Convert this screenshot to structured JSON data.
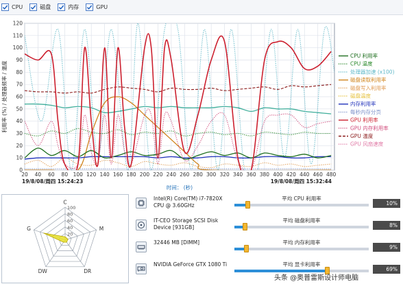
{
  "checkboxes": [
    {
      "label": "CPU",
      "checked": true
    },
    {
      "label": "磁盘",
      "checked": true
    },
    {
      "label": "内存",
      "checked": true
    },
    {
      "label": "GPU",
      "checked": true
    }
  ],
  "chart_data": {
    "type": "line",
    "ylabel": "利用率 (%) / 处理器频率 / 温度",
    "xlabel": "时间： (秒)",
    "x_ticks": [
      20,
      40,
      60,
      80,
      100,
      120,
      140,
      160,
      180,
      200,
      220,
      240,
      260,
      280,
      300,
      320,
      340,
      360,
      380,
      400,
      420,
      440,
      460,
      480
    ],
    "xlim": [
      20,
      485
    ],
    "ylim": [
      0,
      120
    ],
    "y_ticks": [
      0,
      10,
      20,
      30,
      40,
      50,
      60,
      70,
      80,
      90,
      100,
      110,
      120
    ],
    "grid": true,
    "start_time": "19/8/08/周四 15:24:23",
    "end_time": "19/8/08/周四 15:32:44",
    "legend_position": "right",
    "series": [
      {
        "name": "CPU 利用率",
        "color": "#1f6f1f",
        "dash": "solid",
        "x": [
          20,
          40,
          60,
          80,
          100,
          120,
          140,
          160,
          180,
          200,
          220,
          240,
          260,
          280,
          300,
          320,
          340,
          360,
          380,
          400,
          420,
          440,
          460,
          480
        ],
        "values": [
          10,
          18,
          12,
          16,
          11,
          16,
          10,
          12,
          15,
          12,
          13,
          16,
          9,
          12,
          15,
          12,
          14,
          10,
          14,
          12,
          11,
          13,
          10,
          12
        ]
      },
      {
        "name": "CPU 温度",
        "color": "#2e8b2e",
        "dash": "dotted",
        "x": [
          20,
          40,
          60,
          80,
          100,
          120,
          140,
          160,
          180,
          200,
          220,
          240,
          260,
          280,
          300,
          320,
          340,
          360,
          380,
          400,
          420,
          440,
          460,
          480
        ],
        "values": [
          30,
          28,
          32,
          30,
          34,
          31,
          30,
          33,
          29,
          31,
          30,
          32,
          28,
          30,
          31,
          29,
          30,
          28,
          31,
          30,
          29,
          31,
          30,
          30
        ]
      },
      {
        "name": "处理器加速 (x100)",
        "color": "#5fb8c8",
        "dash": "dotted",
        "x": [
          20,
          45,
          70,
          90,
          110,
          130,
          150,
          175,
          190,
          210,
          230,
          250,
          270,
          290,
          310,
          330,
          350,
          370,
          390,
          410,
          430,
          450,
          470,
          485
        ],
        "values": [
          110,
          40,
          115,
          0,
          115,
          10,
          115,
          0,
          120,
          0,
          115,
          115,
          0,
          115,
          0,
          115,
          0,
          0,
          115,
          10,
          115,
          5,
          115,
          80
        ]
      },
      {
        "name": "磁盘读取利用率",
        "color": "#d0841c",
        "dash": "solid",
        "x": [
          20,
          60,
          100,
          120,
          140,
          160,
          180,
          200,
          220,
          240,
          260,
          280,
          300,
          480
        ],
        "values": [
          0,
          0,
          0,
          30,
          55,
          60,
          55,
          45,
          35,
          25,
          15,
          5,
          0,
          0
        ]
      },
      {
        "name": "磁盘写入利用率",
        "color": "#e09a50",
        "dash": "dotted",
        "x": [
          20,
          40,
          60,
          80,
          100,
          120,
          140,
          160,
          180,
          200,
          220,
          240,
          260,
          280,
          300,
          320,
          340,
          360,
          380,
          400,
          420,
          440,
          460,
          480
        ],
        "values": [
          5,
          8,
          3,
          10,
          5,
          4,
          8,
          6,
          3,
          7,
          5,
          4,
          6,
          3,
          2,
          5,
          4,
          3,
          6,
          4,
          5,
          3,
          4,
          5
        ]
      },
      {
        "name": "磁盘温度",
        "color": "#e6c240",
        "dash": "dotted",
        "x": [
          20,
          480
        ],
        "values": [
          0,
          0
        ]
      },
      {
        "name": "内存利用率",
        "color": "#2233bb",
        "dash": "solid",
        "x": [
          20,
          40,
          60,
          80,
          100,
          120,
          140,
          160,
          180,
          200,
          220,
          240,
          260,
          280,
          300,
          320,
          340,
          360,
          380,
          400,
          420,
          440,
          460,
          480
        ],
        "values": [
          9,
          10,
          10,
          10,
          10,
          11,
          11,
          11,
          11,
          11,
          10,
          11,
          10,
          10,
          11,
          11,
          10,
          10,
          11,
          11,
          10,
          10,
          11,
          11
        ]
      },
      {
        "name": "每秒内存分页",
        "color": "#7a8fc8",
        "dash": "dotted",
        "x": [
          20,
          480
        ],
        "values": [
          1,
          1
        ]
      },
      {
        "name": "GPU 利用率",
        "color": "#cc1f2e",
        "dash": "solid",
        "x": [
          20,
          40,
          60,
          70,
          80,
          100,
          110,
          120,
          130,
          140,
          150,
          160,
          170,
          180,
          200,
          210,
          220,
          230,
          240,
          260,
          280,
          300,
          320,
          340,
          360,
          380,
          400,
          420,
          440,
          460,
          480
        ],
        "values": [
          95,
          90,
          95,
          40,
          5,
          5,
          100,
          40,
          5,
          100,
          10,
          100,
          35,
          5,
          100,
          100,
          10,
          100,
          90,
          15,
          45,
          90,
          105,
          10,
          0,
          90,
          105,
          100,
          83,
          85,
          97
        ]
      },
      {
        "name": "GPU 内存利用率",
        "color": "#d04a7a",
        "dash": "dotted",
        "x": [
          20,
          40,
          60,
          70,
          80,
          100,
          110,
          120,
          130,
          140,
          150,
          160,
          170,
          180,
          200,
          210,
          220,
          230,
          240,
          260,
          280,
          300,
          320,
          340,
          360,
          380,
          400,
          420,
          440,
          460,
          480
        ],
        "values": [
          40,
          20,
          40,
          20,
          5,
          5,
          45,
          15,
          5,
          45,
          5,
          45,
          15,
          5,
          45,
          45,
          5,
          45,
          40,
          8,
          20,
          40,
          45,
          8,
          0,
          40,
          45,
          45,
          35,
          38,
          40
        ]
      },
      {
        "name": "GPU 温度",
        "color": "#8b1a1a",
        "dash": "dashed",
        "x": [
          20,
          40,
          60,
          80,
          100,
          120,
          140,
          160,
          180,
          200,
          220,
          240,
          260,
          280,
          300,
          320,
          340,
          360,
          380,
          400,
          420,
          440,
          460,
          480
        ],
        "values": [
          65,
          64,
          64,
          63,
          64,
          63,
          66,
          68,
          67,
          66,
          64,
          67,
          66,
          66,
          67,
          65,
          66,
          67,
          68,
          66,
          69,
          68,
          69,
          70
        ]
      },
      {
        "name": "GPU 风扇速度",
        "color": "#e07aa6",
        "dash": "dotted",
        "x": [
          20,
          40,
          60,
          80,
          100,
          120,
          140,
          160,
          180,
          200,
          220,
          240,
          260,
          280,
          300,
          320,
          340,
          360,
          380,
          400,
          420,
          440,
          460,
          480
        ],
        "values": [
          53,
          54,
          53,
          52,
          54,
          56,
          55,
          57,
          56,
          53,
          55,
          52,
          51,
          54,
          53,
          52,
          53,
          51,
          54,
          52,
          52,
          54,
          53,
          50
        ]
      }
    ],
    "extra_series_teal": {
      "color": "#3fae9a",
      "x": [
        20,
        40,
        60,
        80,
        100,
        120,
        140,
        160,
        180,
        200,
        220,
        240,
        260,
        280,
        300,
        320,
        340,
        360,
        380,
        400,
        420,
        440,
        460,
        480
      ],
      "values": [
        54,
        54,
        53,
        51,
        52,
        51,
        47,
        48,
        50,
        52,
        51,
        52,
        51,
        51,
        51,
        52,
        51,
        48,
        51,
        50,
        50,
        48,
        47,
        46
      ]
    }
  },
  "radar": {
    "axes": [
      "C",
      "M",
      "DR",
      "DW",
      "G"
    ],
    "ticks": [
      "20",
      "40",
      "60",
      "80",
      "100"
    ],
    "values": [
      10,
      9,
      8,
      8,
      69
    ],
    "fill_color": "#e8e02a"
  },
  "hardware": [
    {
      "icon": "cpu-chip-icon",
      "name": "Intel(R) Core(TM) i7-7820X CPU @ 3.60GHz",
      "metric_label": "平均 CPU 利用率",
      "value": 10,
      "value_label": "10%"
    },
    {
      "icon": "disk-drive-icon",
      "name": "IT-CEO Storage SCSI Disk Device [931GB]",
      "metric_label": "平均 磁盘利用率",
      "value": 8,
      "value_label": "8%"
    },
    {
      "icon": "memory-module-icon",
      "name": "32446 MB [DIMM]",
      "metric_label": "平均 内存利用率",
      "value": 9,
      "value_label": "9%"
    },
    {
      "icon": "graphics-card-icon",
      "name": "NVIDIA GeForce GTX 1080 Ti",
      "metric_label": "平均 显卡利用率",
      "value": 69,
      "value_label": "69%"
    }
  ],
  "watermark": "头条 @奥普雷斯设计师电脑"
}
